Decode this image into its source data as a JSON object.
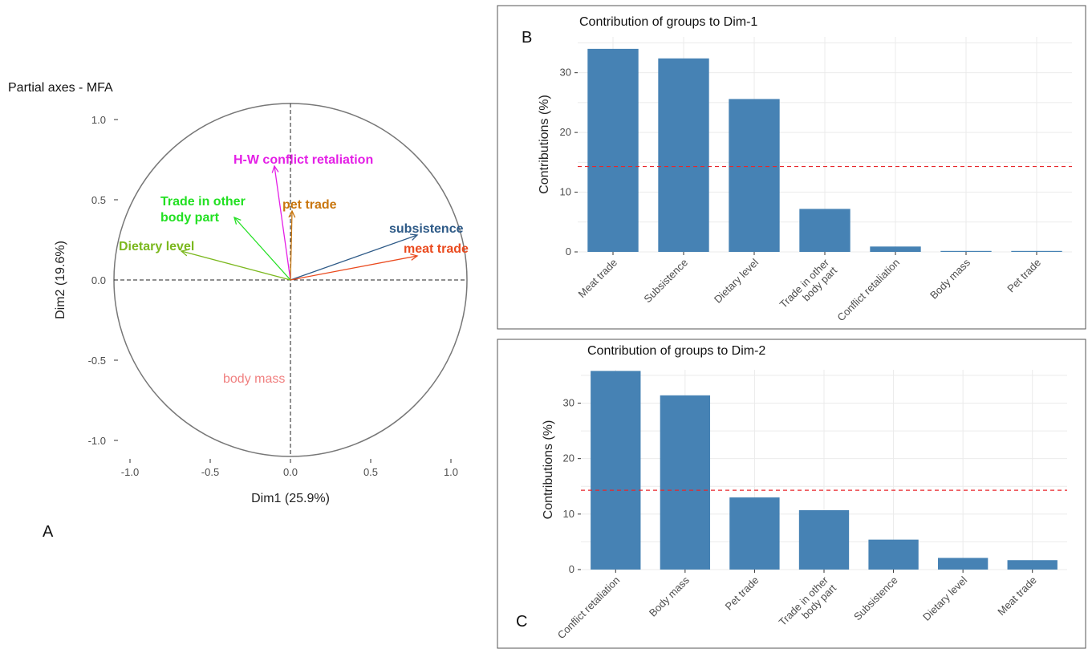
{
  "chart_data": [
    {
      "panel_letter": "A",
      "type": "scatter",
      "subtype": "correlation-circle",
      "title": "Partial axes - MFA",
      "xlabel": "Dim1 (25.9%)",
      "ylabel": "Dim2 (19.6%)",
      "xlim": [
        -1.1,
        1.1
      ],
      "ylim": [
        -1.1,
        1.1
      ],
      "xticks": [
        "-1.0",
        "-0.5",
        "0.0",
        "0.5",
        "1.0"
      ],
      "yticks": [
        "-1.0",
        "-0.5",
        "0.0",
        "0.5",
        "1.0"
      ],
      "arrows": [
        {
          "label": "H-W conflict retaliation",
          "x": -0.1,
          "y": 0.71,
          "color": "#e41fe6",
          "bold": true
        },
        {
          "label": "Trade in other\nbody part",
          "x": -0.35,
          "y": 0.39,
          "color": "#22e022",
          "bold": true
        },
        {
          "label": "pet trade",
          "x": 0.01,
          "y": 0.43,
          "color": "#c9760e",
          "bold": true
        },
        {
          "label": "subsistence",
          "x": 0.79,
          "y": 0.28,
          "color": "#2e5a87",
          "bold": true
        },
        {
          "label": "meat trade",
          "x": 0.79,
          "y": 0.15,
          "color": "#ea4a1e",
          "bold": true
        },
        {
          "label": "Dietary level",
          "x": -0.68,
          "y": 0.18,
          "color": "#7bb81e",
          "bold": true
        },
        {
          "label": "body mass",
          "x": 0.01,
          "y": -0.63,
          "color": "#f08080",
          "bold": false
        }
      ]
    },
    {
      "panel_letter": "B",
      "type": "bar",
      "title": "Contribution of groups to Dim-1",
      "xlabel": "",
      "ylabel": "Contributions (%)",
      "ylim": [
        0,
        36
      ],
      "yticks": [
        "0",
        "10",
        "20",
        "30"
      ],
      "categories": [
        "Meat trade",
        "Subsistence",
        "Dietary level",
        "Trade in other\nbody part",
        "Conflict retaliation",
        "Body mass",
        "Pet trade"
      ],
      "values": [
        34.0,
        32.4,
        25.6,
        7.2,
        0.9,
        0.15,
        0.15
      ],
      "reference_line": 14.3,
      "bar_color": "#4682b4",
      "reference_color": "#e8262b"
    },
    {
      "panel_letter": "C",
      "type": "bar",
      "title": "Contribution of groups to Dim-2",
      "xlabel": "",
      "ylabel": "Contributions (%)",
      "ylim": [
        0,
        36
      ],
      "yticks": [
        "0",
        "10",
        "20",
        "30"
      ],
      "categories": [
        "Conflict retaliation",
        "Body mass",
        "Pet trade",
        "Trade in other\nbody part",
        "Subsistence",
        "Dietary level",
        "Meat trade"
      ],
      "values": [
        35.8,
        31.4,
        13.0,
        10.7,
        5.4,
        2.1,
        1.7
      ],
      "reference_line": 14.3,
      "bar_color": "#4682b4",
      "reference_color": "#e8262b"
    }
  ]
}
